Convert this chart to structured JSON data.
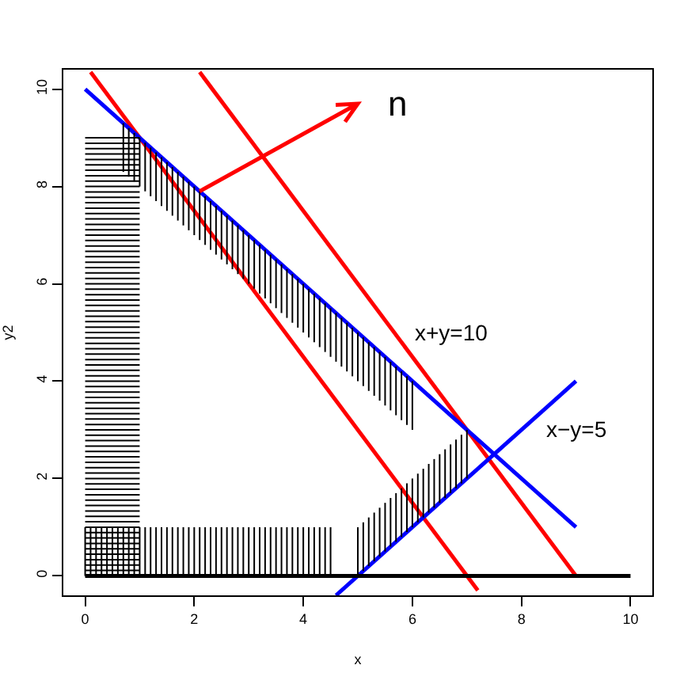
{
  "chart_data": {
    "type": "line",
    "xlabel": "x",
    "ylabel": "y2",
    "xlim": [
      -0.4,
      10.4
    ],
    "ylim": [
      -0.4,
      10.4
    ],
    "xticks": [
      0,
      2,
      4,
      6,
      8,
      10
    ],
    "yticks": [
      0,
      2,
      4,
      6,
      8,
      10
    ],
    "grid": false,
    "marker": "none",
    "series": [
      {
        "color": "#ff0000",
        "x": [
          0.1,
          7.2
        ],
        "values": [
          10.35,
          -0.3
        ]
      },
      {
        "color": "#ff0000",
        "x": [
          2.1,
          9
        ],
        "values": [
          10.35,
          0
        ]
      },
      {
        "color": "#0000ff",
        "x": [
          0,
          9
        ],
        "values": [
          10,
          1
        ]
      },
      {
        "color": "#0000ff",
        "x": [
          4.6,
          9
        ],
        "values": [
          -0.4,
          4
        ]
      },
      {
        "color": "#000000",
        "x": [
          0,
          10
        ],
        "values": [
          0,
          0
        ]
      }
    ],
    "annotations": [
      {
        "text": "n",
        "x": 2.1,
        "y": 7.9
      },
      "x+y=10",
      "x−y=5"
    ]
  }
}
